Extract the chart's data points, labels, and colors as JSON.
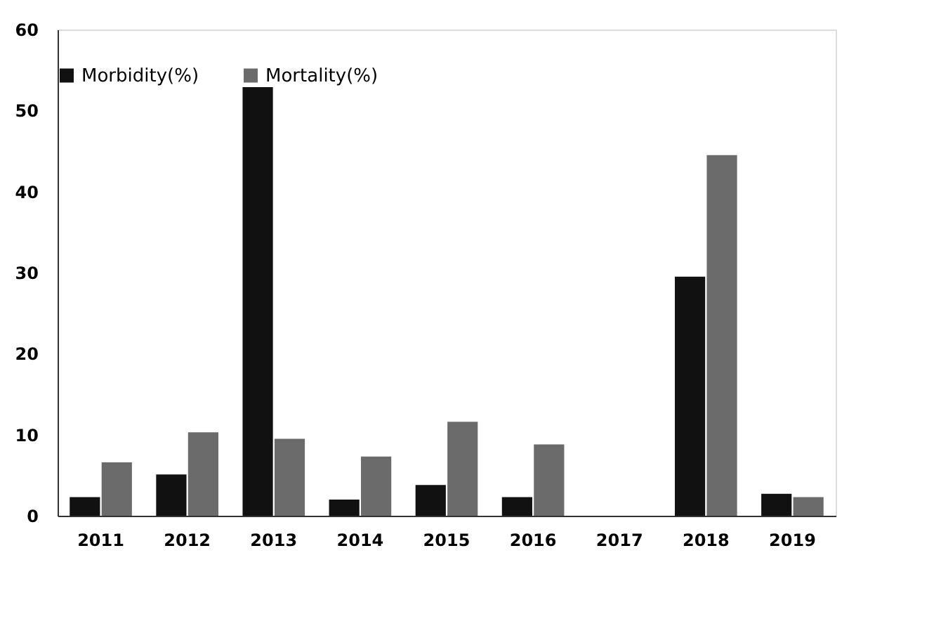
{
  "chart_data": {
    "type": "bar",
    "categories": [
      "2011",
      "2012",
      "2013",
      "2014",
      "2015",
      "2016",
      "2017",
      "2018",
      "2019"
    ],
    "series": [
      {
        "name": "Morbidity(%)",
        "color": "#111111",
        "values": [
          2.3,
          5.1,
          52.9,
          2.0,
          3.8,
          2.3,
          0,
          29.5,
          2.7
        ]
      },
      {
        "name": "Mortality(%)",
        "color": "#6b6b6b",
        "values": [
          6.6,
          10.3,
          9.5,
          7.3,
          11.6,
          8.8,
          0,
          44.5,
          2.3
        ]
      }
    ],
    "ylim": [
      0,
      60
    ],
    "yticks": [
      0,
      10,
      20,
      30,
      40,
      50,
      60
    ],
    "grid": false,
    "legend": "top"
  }
}
